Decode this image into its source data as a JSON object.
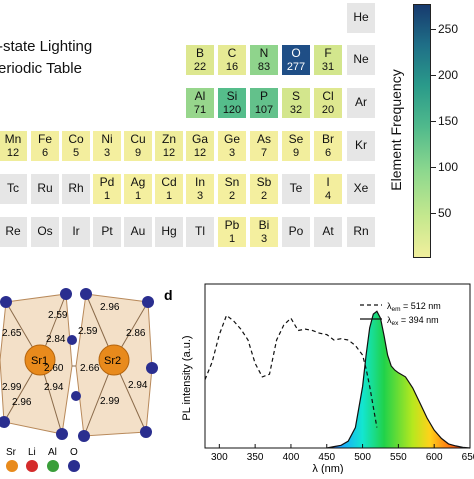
{
  "figure_title": {
    "line1": "-state Lighting",
    "line2": "eriodic Table"
  },
  "periodic_table": [
    {
      "symbol": "He",
      "count": null,
      "color": "#e6e6e6"
    },
    {
      "symbol": "B",
      "count": "22",
      "color": "#dde78f"
    },
    {
      "symbol": "C",
      "count": "16",
      "color": "#e6ea94"
    },
    {
      "symbol": "N",
      "count": "83",
      "color": "#8fd48c"
    },
    {
      "symbol": "O",
      "count": "277",
      "color": "#1f4e86"
    },
    {
      "symbol": "F",
      "count": "31",
      "color": "#d3e68d"
    },
    {
      "symbol": "Ne",
      "count": null,
      "color": "#e6e6e6"
    },
    {
      "symbol": "Al",
      "count": "71",
      "color": "#97d68c"
    },
    {
      "symbol": "Si",
      "count": "120",
      "color": "#55bd8b"
    },
    {
      "symbol": "P",
      "count": "107",
      "color": "#63c18b"
    },
    {
      "symbol": "S",
      "count": "32",
      "color": "#d3e68d"
    },
    {
      "symbol": "Cl",
      "count": "20",
      "color": "#dfe890"
    },
    {
      "symbol": "Ar",
      "count": null,
      "color": "#e6e6e6"
    },
    {
      "symbol": "Mn",
      "count": "12",
      "color": "#efed9b"
    },
    {
      "symbol": "Fe",
      "count": "6",
      "color": "#f3ee9e"
    },
    {
      "symbol": "Co",
      "count": "5",
      "color": "#f3ee9e"
    },
    {
      "symbol": "Ni",
      "count": "3",
      "color": "#f4ef9f"
    },
    {
      "symbol": "Cu",
      "count": "9",
      "color": "#f2ee9d"
    },
    {
      "symbol": "Zn",
      "count": "12",
      "color": "#efed9b"
    },
    {
      "symbol": "Ga",
      "count": "12",
      "color": "#efed9b"
    },
    {
      "symbol": "Ge",
      "count": "3",
      "color": "#f4ef9f"
    },
    {
      "symbol": "As",
      "count": "7",
      "color": "#f3ee9e"
    },
    {
      "symbol": "Se",
      "count": "9",
      "color": "#f2ee9d"
    },
    {
      "symbol": "Br",
      "count": "6",
      "color": "#f3ee9e"
    },
    {
      "symbol": "Kr",
      "count": null,
      "color": "#e6e6e6"
    },
    {
      "symbol": "Tc",
      "count": null,
      "color": "#e6e6e6"
    },
    {
      "symbol": "Ru",
      "count": null,
      "color": "#e6e6e6"
    },
    {
      "symbol": "Rh",
      "count": null,
      "color": "#e6e6e6"
    },
    {
      "symbol": "Pd",
      "count": "1",
      "color": "#f4ef9f"
    },
    {
      "symbol": "Ag",
      "count": "1",
      "color": "#f4ef9f"
    },
    {
      "symbol": "Cd",
      "count": "1",
      "color": "#f4ef9f"
    },
    {
      "symbol": "In",
      "count": "3",
      "color": "#f4ef9f"
    },
    {
      "symbol": "Sn",
      "count": "2",
      "color": "#f4ef9f"
    },
    {
      "symbol": "Sb",
      "count": "2",
      "color": "#f4ef9f"
    },
    {
      "symbol": "Te",
      "count": null,
      "color": "#e6e6e6"
    },
    {
      "symbol": "I",
      "count": "4",
      "color": "#f3ee9e"
    },
    {
      "symbol": "Xe",
      "count": null,
      "color": "#e6e6e6"
    },
    {
      "symbol": "Re",
      "count": null,
      "color": "#e6e6e6"
    },
    {
      "symbol": "Os",
      "count": null,
      "color": "#e6e6e6"
    },
    {
      "symbol": "Ir",
      "count": null,
      "color": "#e6e6e6"
    },
    {
      "symbol": "Pt",
      "count": null,
      "color": "#e6e6e6"
    },
    {
      "symbol": "Au",
      "count": null,
      "color": "#e6e6e6"
    },
    {
      "symbol": "Hg",
      "count": null,
      "color": "#e6e6e6"
    },
    {
      "symbol": "Tl",
      "count": null,
      "color": "#e6e6e6"
    },
    {
      "symbol": "Pb",
      "count": "1",
      "color": "#f4ef9f"
    },
    {
      "symbol": "Bi",
      "count": "3",
      "color": "#f4ef9f"
    },
    {
      "symbol": "Po",
      "count": null,
      "color": "#e6e6e6"
    },
    {
      "symbol": "At",
      "count": null,
      "color": "#e6e6e6"
    },
    {
      "symbol": "Rn",
      "count": null,
      "color": "#e6e6e6"
    }
  ],
  "colorbar": {
    "label": "Element Frequency",
    "ticks": [
      "50",
      "100",
      "150",
      "200",
      "250"
    ],
    "range": [
      1,
      277
    ]
  },
  "crystal_structure": {
    "site_labels": [
      "Sr1",
      "Sr2"
    ],
    "bond_lengths": [
      "2.65",
      "2.59",
      "2.84",
      "2.60",
      "2.99",
      "2.94",
      "2.96",
      "2.96",
      "2.59",
      "2.86",
      "2.66",
      "2.94",
      "2.99"
    ],
    "legend": [
      {
        "label": "Sr",
        "color": "#e88a1c"
      },
      {
        "label": "Li",
        "color": "#d42b2b"
      },
      {
        "label": "Al",
        "color": "#3a9e3a"
      },
      {
        "label": "O",
        "color": "#2a2e8f"
      }
    ]
  },
  "chart_data": {
    "type": "line",
    "panel_label": "d",
    "xlabel": "λ (nm)",
    "ylabel": "PL intensity (a.u.)",
    "xticks": [
      "300",
      "350",
      "400",
      "450",
      "500",
      "550",
      "600",
      "650"
    ],
    "xlim": [
      280,
      650
    ],
    "ylim": [
      0,
      1.2
    ],
    "legend_position": "top-right",
    "series": [
      {
        "name": "λem = 512 nm",
        "name_main": "λ",
        "name_sub": "em",
        "name_rest": " = 512 nm",
        "style": "dashed",
        "x": [
          280,
          290,
          300,
          310,
          320,
          330,
          340,
          350,
          360,
          370,
          380,
          390,
          400,
          410,
          420,
          430,
          440,
          450,
          460,
          470,
          480,
          490,
          500,
          505,
          510,
          515,
          520
        ],
        "y": [
          0.5,
          0.63,
          0.83,
          0.97,
          0.93,
          0.87,
          0.79,
          0.62,
          0.52,
          0.54,
          0.79,
          0.9,
          0.95,
          0.86,
          0.87,
          0.86,
          0.84,
          0.83,
          0.79,
          0.8,
          0.79,
          0.75,
          0.68,
          0.58,
          0.45,
          0.3,
          0.15
        ]
      },
      {
        "name": "λex = 394 nm",
        "name_main": "λ",
        "name_sub": "ex",
        "name_rest": " = 394 nm",
        "style": "solid",
        "x": [
          450,
          460,
          470,
          480,
          490,
          500,
          505,
          510,
          515,
          520,
          525,
          530,
          535,
          540,
          545,
          550,
          560,
          570,
          580,
          590,
          600,
          610,
          620,
          630,
          640,
          650
        ],
        "y": [
          0.0,
          0.01,
          0.02,
          0.05,
          0.15,
          0.45,
          0.68,
          0.88,
          0.98,
          1.0,
          0.95,
          0.82,
          0.68,
          0.6,
          0.57,
          0.55,
          0.52,
          0.44,
          0.33,
          0.22,
          0.13,
          0.07,
          0.03,
          0.015,
          0.005,
          0.0
        ]
      }
    ]
  }
}
